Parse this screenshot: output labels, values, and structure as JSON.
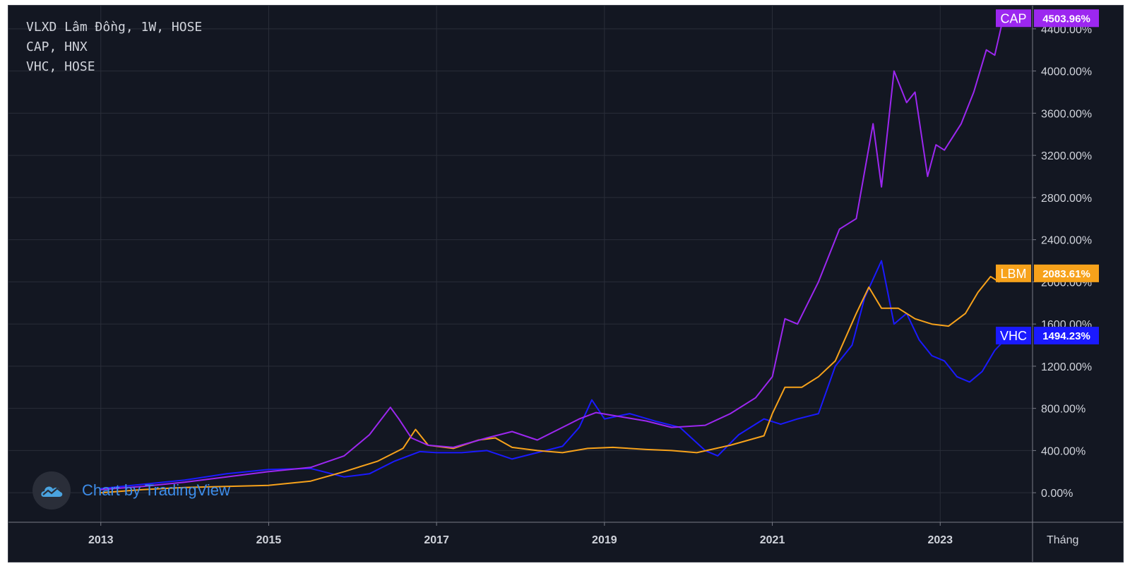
{
  "legend": {
    "line1": "VLXD Lâm Đồng, 1W, HOSE",
    "line2": "CAP, HNX",
    "line3": "VHC, HOSE"
  },
  "watermark": {
    "text": "Chart by TradingView",
    "icon": "tradingview-cloud-icon"
  },
  "colors": {
    "background": "#131722",
    "grid": "#2a2e39",
    "text": "#d1d4dc",
    "CAP": "#9c27f0",
    "LBM": "#f7a21b",
    "VHC": "#1a1aff"
  },
  "chart_data": {
    "type": "line",
    "x_unit_label": "Tháng",
    "x_ticks": [
      "2013",
      "2015",
      "2017",
      "2019",
      "2021",
      "2023"
    ],
    "y_ticks": [
      "0.00%",
      "400.00%",
      "800.00%",
      "1200.00%",
      "1600.00%",
      "2000.00%",
      "2400.00%",
      "2800.00%",
      "3200.00%",
      "3600.00%",
      "4000.00%",
      "4400.00%"
    ],
    "ylim": [
      -280,
      4620
    ],
    "xlim": [
      2011.9,
      2024.1
    ],
    "grid": true,
    "series": [
      {
        "name": "CAP",
        "last_value_label": "4503.96%",
        "x": [
          2013.0,
          2013.5,
          2014.0,
          2014.5,
          2015.0,
          2015.5,
          2015.9,
          2016.2,
          2016.45,
          2016.55,
          2016.7,
          2016.9,
          2017.2,
          2017.6,
          2017.9,
          2018.2,
          2018.5,
          2018.7,
          2018.9,
          2019.2,
          2019.5,
          2019.8,
          2020.2,
          2020.5,
          2020.8,
          2021.0,
          2021.15,
          2021.3,
          2021.55,
          2021.8,
          2022.0,
          2022.2,
          2022.3,
          2022.45,
          2022.6,
          2022.7,
          2022.85,
          2022.95,
          2023.05,
          2023.25,
          2023.4,
          2023.55,
          2023.65,
          2023.75,
          2023.82
        ],
        "values": [
          30,
          60,
          100,
          150,
          200,
          240,
          350,
          550,
          810,
          700,
          520,
          450,
          430,
          520,
          580,
          500,
          620,
          700,
          760,
          720,
          680,
          620,
          640,
          750,
          900,
          1100,
          1650,
          1600,
          2000,
          2500,
          2600,
          3500,
          2900,
          4000,
          3700,
          3800,
          3000,
          3300,
          3250,
          3500,
          3800,
          4200,
          4150,
          4500,
          4504
        ]
      },
      {
        "name": "LBM",
        "last_value_label": "2083.61%",
        "x": [
          2013.0,
          2013.5,
          2014.0,
          2014.5,
          2015.0,
          2015.5,
          2015.9,
          2016.3,
          2016.6,
          2016.75,
          2016.9,
          2017.2,
          2017.5,
          2017.7,
          2017.9,
          2018.2,
          2018.5,
          2018.8,
          2019.1,
          2019.5,
          2019.8,
          2020.1,
          2020.5,
          2020.9,
          2021.0,
          2021.15,
          2021.35,
          2021.55,
          2021.75,
          2022.0,
          2022.15,
          2022.3,
          2022.5,
          2022.7,
          2022.9,
          2023.1,
          2023.3,
          2023.45,
          2023.6,
          2023.7,
          2023.82
        ],
        "values": [
          0,
          30,
          50,
          60,
          70,
          110,
          200,
          300,
          420,
          600,
          450,
          420,
          500,
          520,
          430,
          400,
          380,
          420,
          430,
          410,
          400,
          380,
          450,
          540,
          750,
          1000,
          1000,
          1100,
          1250,
          1700,
          1950,
          1750,
          1750,
          1650,
          1600,
          1580,
          1700,
          1900,
          2050,
          2000,
          2084
        ]
      },
      {
        "name": "VHC",
        "last_value_label": "1494.23%",
        "x": [
          2013.0,
          2013.5,
          2014.0,
          2014.5,
          2015.0,
          2015.5,
          2015.9,
          2016.2,
          2016.5,
          2016.8,
          2017.0,
          2017.3,
          2017.6,
          2017.9,
          2018.2,
          2018.5,
          2018.7,
          2018.85,
          2019.0,
          2019.3,
          2019.6,
          2019.9,
          2020.2,
          2020.35,
          2020.6,
          2020.9,
          2021.1,
          2021.3,
          2021.55,
          2021.75,
          2021.95,
          2022.1,
          2022.3,
          2022.45,
          2022.6,
          2022.75,
          2022.9,
          2023.05,
          2023.2,
          2023.35,
          2023.5,
          2023.65,
          2023.82
        ],
        "values": [
          40,
          80,
          120,
          180,
          220,
          230,
          150,
          180,
          300,
          390,
          380,
          380,
          400,
          320,
          380,
          440,
          620,
          880,
          700,
          750,
          680,
          620,
          400,
          350,
          550,
          700,
          650,
          700,
          750,
          1200,
          1400,
          1850,
          2200,
          1600,
          1700,
          1450,
          1300,
          1250,
          1100,
          1050,
          1150,
          1350,
          1494
        ]
      }
    ]
  }
}
